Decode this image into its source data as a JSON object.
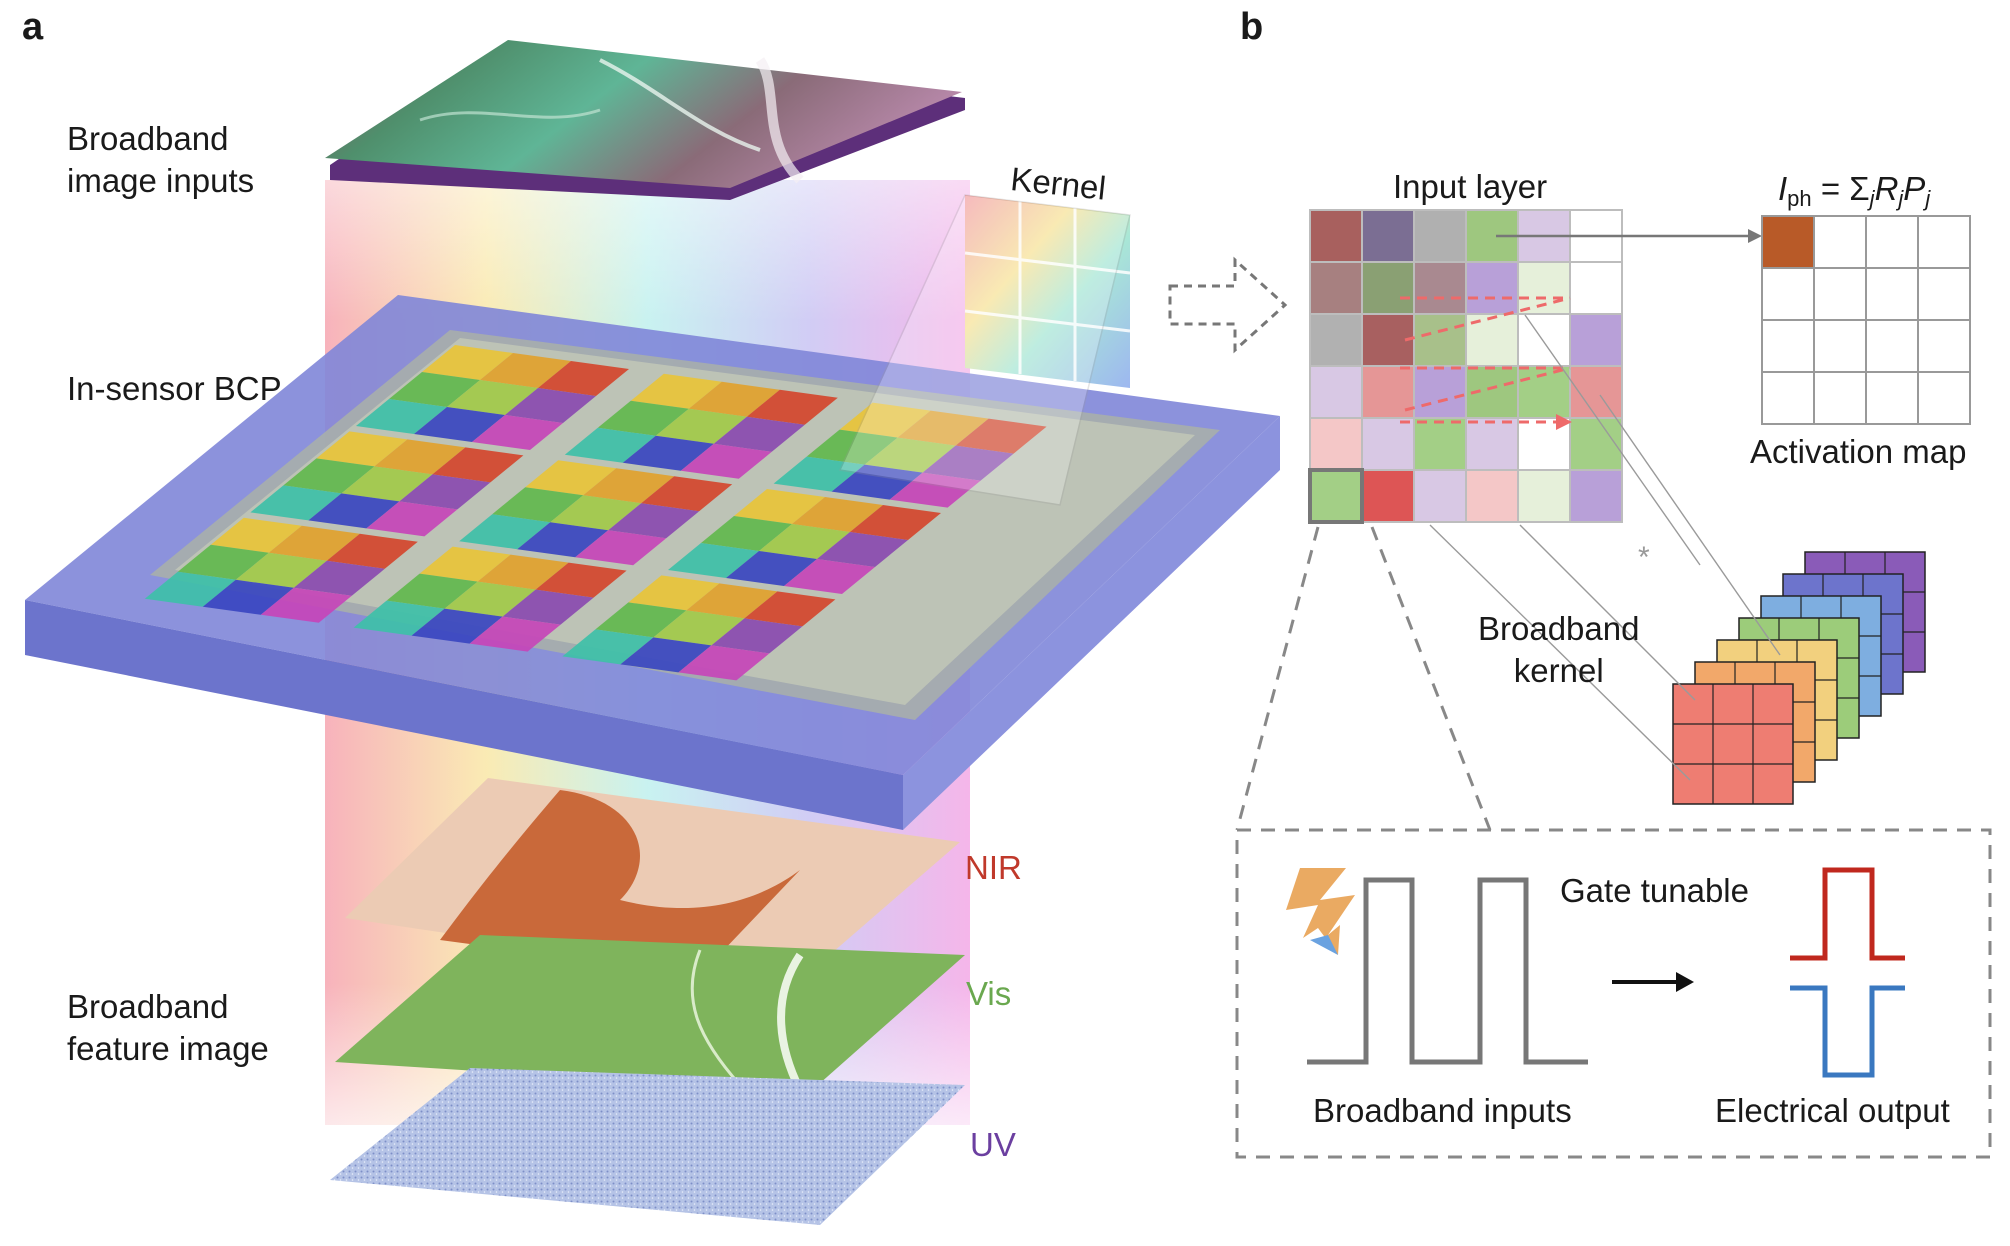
{
  "panels": {
    "a": "a",
    "b": "b"
  },
  "panel_a": {
    "broadband_image_inputs": "Broadband\nimage inputs",
    "in_sensor": "In-sensor BCP",
    "kernel": "Kernel",
    "broadband_feature_image": "Broadband\nfeature image",
    "bands": {
      "nir": "NIR",
      "vis": "Vis",
      "uv": "UV"
    }
  },
  "panel_b": {
    "input_layer": "Input layer",
    "activation_map": "Activation map",
    "broadband_kernel": "Broadband\nkernel",
    "conv_symbol": "*",
    "gate_tunable": "Gate tunable",
    "broadband_inputs": "Broadband inputs",
    "electrical_output": "Electrical output",
    "formula": {
      "lhs": "I",
      "lhs_sub": "ph",
      "eq": " = Σ",
      "j": "j",
      "r": "R",
      "p": "P"
    }
  },
  "colors": {
    "nir": "#c0392b",
    "vis": "#6aa84f",
    "uv": "#6b3fa0",
    "activation_cell": "#b85a28",
    "pulse_red": "#c0281e",
    "pulse_blue": "#3a78c0",
    "dashed_arrow": "#ee6a6a"
  }
}
